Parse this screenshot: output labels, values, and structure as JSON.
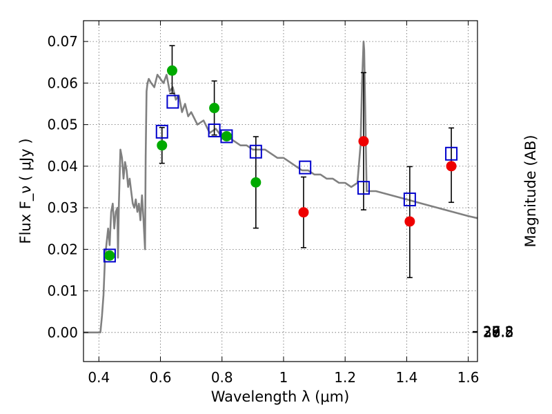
{
  "chart_data": {
    "type": "scatter",
    "title": "",
    "xlabel": "Wavelength  λ (μm)",
    "ylabel": "Flux  F_ν  ( μJy )",
    "y2label": "Magnitude (AB)",
    "xlim": [
      0.35,
      1.63
    ],
    "ylim": [
      -0.007,
      0.075
    ],
    "grid": true,
    "x_ticks": [
      0.4,
      0.6,
      0.8,
      1.0,
      1.2,
      1.4,
      1.6
    ],
    "x_tick_labels": [
      "0.4",
      "0.6",
      "0.8",
      "1",
      "1.2",
      "1.4",
      "1.6"
    ],
    "y_ticks": [
      0.0,
      0.01,
      0.02,
      0.03,
      0.04,
      0.05,
      0.06,
      0.07
    ],
    "y_tick_labels": [
      "0.00",
      "0.01",
      "0.02",
      "0.03",
      "0.04",
      "0.05",
      "0.06",
      "0.07"
    ],
    "y2_ticks": [
      26.8,
      27,
      27.2,
      27.5,
      28,
      28.5,
      29,
      30
    ],
    "y2_tick_labels": [
      "26.8",
      "27",
      "27.2",
      "27.5",
      "28",
      "28.5",
      "29",
      "30"
    ],
    "series": [
      {
        "kind": "line",
        "color": "#808080",
        "x": [
          0.35,
          0.405,
          0.41,
          0.415,
          0.42,
          0.43,
          0.435,
          0.44,
          0.445,
          0.45,
          0.455,
          0.46,
          0.462,
          0.465,
          0.47,
          0.475,
          0.48,
          0.485,
          0.49,
          0.495,
          0.5,
          0.505,
          0.51,
          0.515,
          0.52,
          0.525,
          0.53,
          0.535,
          0.54,
          0.545,
          0.55,
          0.552,
          0.555,
          0.558,
          0.562,
          0.57,
          0.58,
          0.59,
          0.6,
          0.61,
          0.62,
          0.63,
          0.64,
          0.65,
          0.66,
          0.67,
          0.68,
          0.69,
          0.7,
          0.72,
          0.74,
          0.76,
          0.78,
          0.8,
          0.82,
          0.84,
          0.86,
          0.88,
          0.9,
          0.92,
          0.94,
          0.96,
          0.98,
          1.0,
          1.02,
          1.04,
          1.06,
          1.08,
          1.1,
          1.12,
          1.14,
          1.16,
          1.18,
          1.2,
          1.22,
          1.24,
          1.25,
          1.255,
          1.26,
          1.262,
          1.265,
          1.27,
          1.28,
          1.3,
          1.35,
          1.4,
          1.45,
          1.5,
          1.55,
          1.6,
          1.63
        ],
        "y": [
          0.0,
          0.0,
          0.004,
          0.009,
          0.018,
          0.025,
          0.021,
          0.029,
          0.031,
          0.025,
          0.029,
          0.03,
          0.018,
          0.031,
          0.044,
          0.042,
          0.037,
          0.041,
          0.039,
          0.035,
          0.037,
          0.034,
          0.031,
          0.03,
          0.032,
          0.029,
          0.031,
          0.027,
          0.033,
          0.027,
          0.02,
          0.042,
          0.058,
          0.06,
          0.061,
          0.06,
          0.059,
          0.062,
          0.061,
          0.06,
          0.062,
          0.058,
          0.059,
          0.056,
          0.057,
          0.053,
          0.055,
          0.052,
          0.053,
          0.05,
          0.051,
          0.048,
          0.049,
          0.047,
          0.047,
          0.046,
          0.045,
          0.045,
          0.044,
          0.044,
          0.044,
          0.043,
          0.042,
          0.042,
          0.041,
          0.04,
          0.039,
          0.039,
          0.038,
          0.038,
          0.037,
          0.037,
          0.036,
          0.036,
          0.035,
          0.036,
          0.045,
          0.06,
          0.07,
          0.068,
          0.055,
          0.034,
          0.034,
          0.034,
          0.033,
          0.032,
          0.031,
          0.03,
          0.029,
          0.028,
          0.0275
        ]
      },
      {
        "kind": "open-square",
        "color": "#0000cc",
        "x": [
          0.435,
          0.605,
          0.64,
          0.775,
          0.815,
          0.91,
          1.07,
          1.26,
          1.41,
          1.545
        ],
        "y": [
          0.0185,
          0.0483,
          0.0555,
          0.0486,
          0.0472,
          0.0435,
          0.0397,
          0.0348,
          0.032,
          0.043
        ]
      },
      {
        "kind": "filled-circle",
        "color": "#00aa00",
        "x": [
          0.435,
          0.605,
          0.638,
          0.775,
          0.815,
          0.91
        ],
        "y": [
          0.0185,
          0.045,
          0.063,
          0.054,
          0.0472,
          0.0361
        ],
        "yerr_low": [
          0.0,
          0.0043,
          0.0055,
          0.0065,
          0.0,
          0.011
        ],
        "yerr_high": [
          0.0,
          0.0043,
          0.006,
          0.0065,
          0.0,
          0.011
        ]
      },
      {
        "kind": "filled-circle",
        "color": "#ee0000",
        "x": [
          1.065,
          1.26,
          1.41,
          1.545
        ],
        "y": [
          0.0289,
          0.046,
          0.0267,
          0.04
        ],
        "yerr_low": [
          0.0085,
          0.0165,
          0.0135,
          0.0087
        ],
        "yerr_high": [
          0.0085,
          0.0165,
          0.0132,
          0.0092
        ]
      }
    ]
  }
}
